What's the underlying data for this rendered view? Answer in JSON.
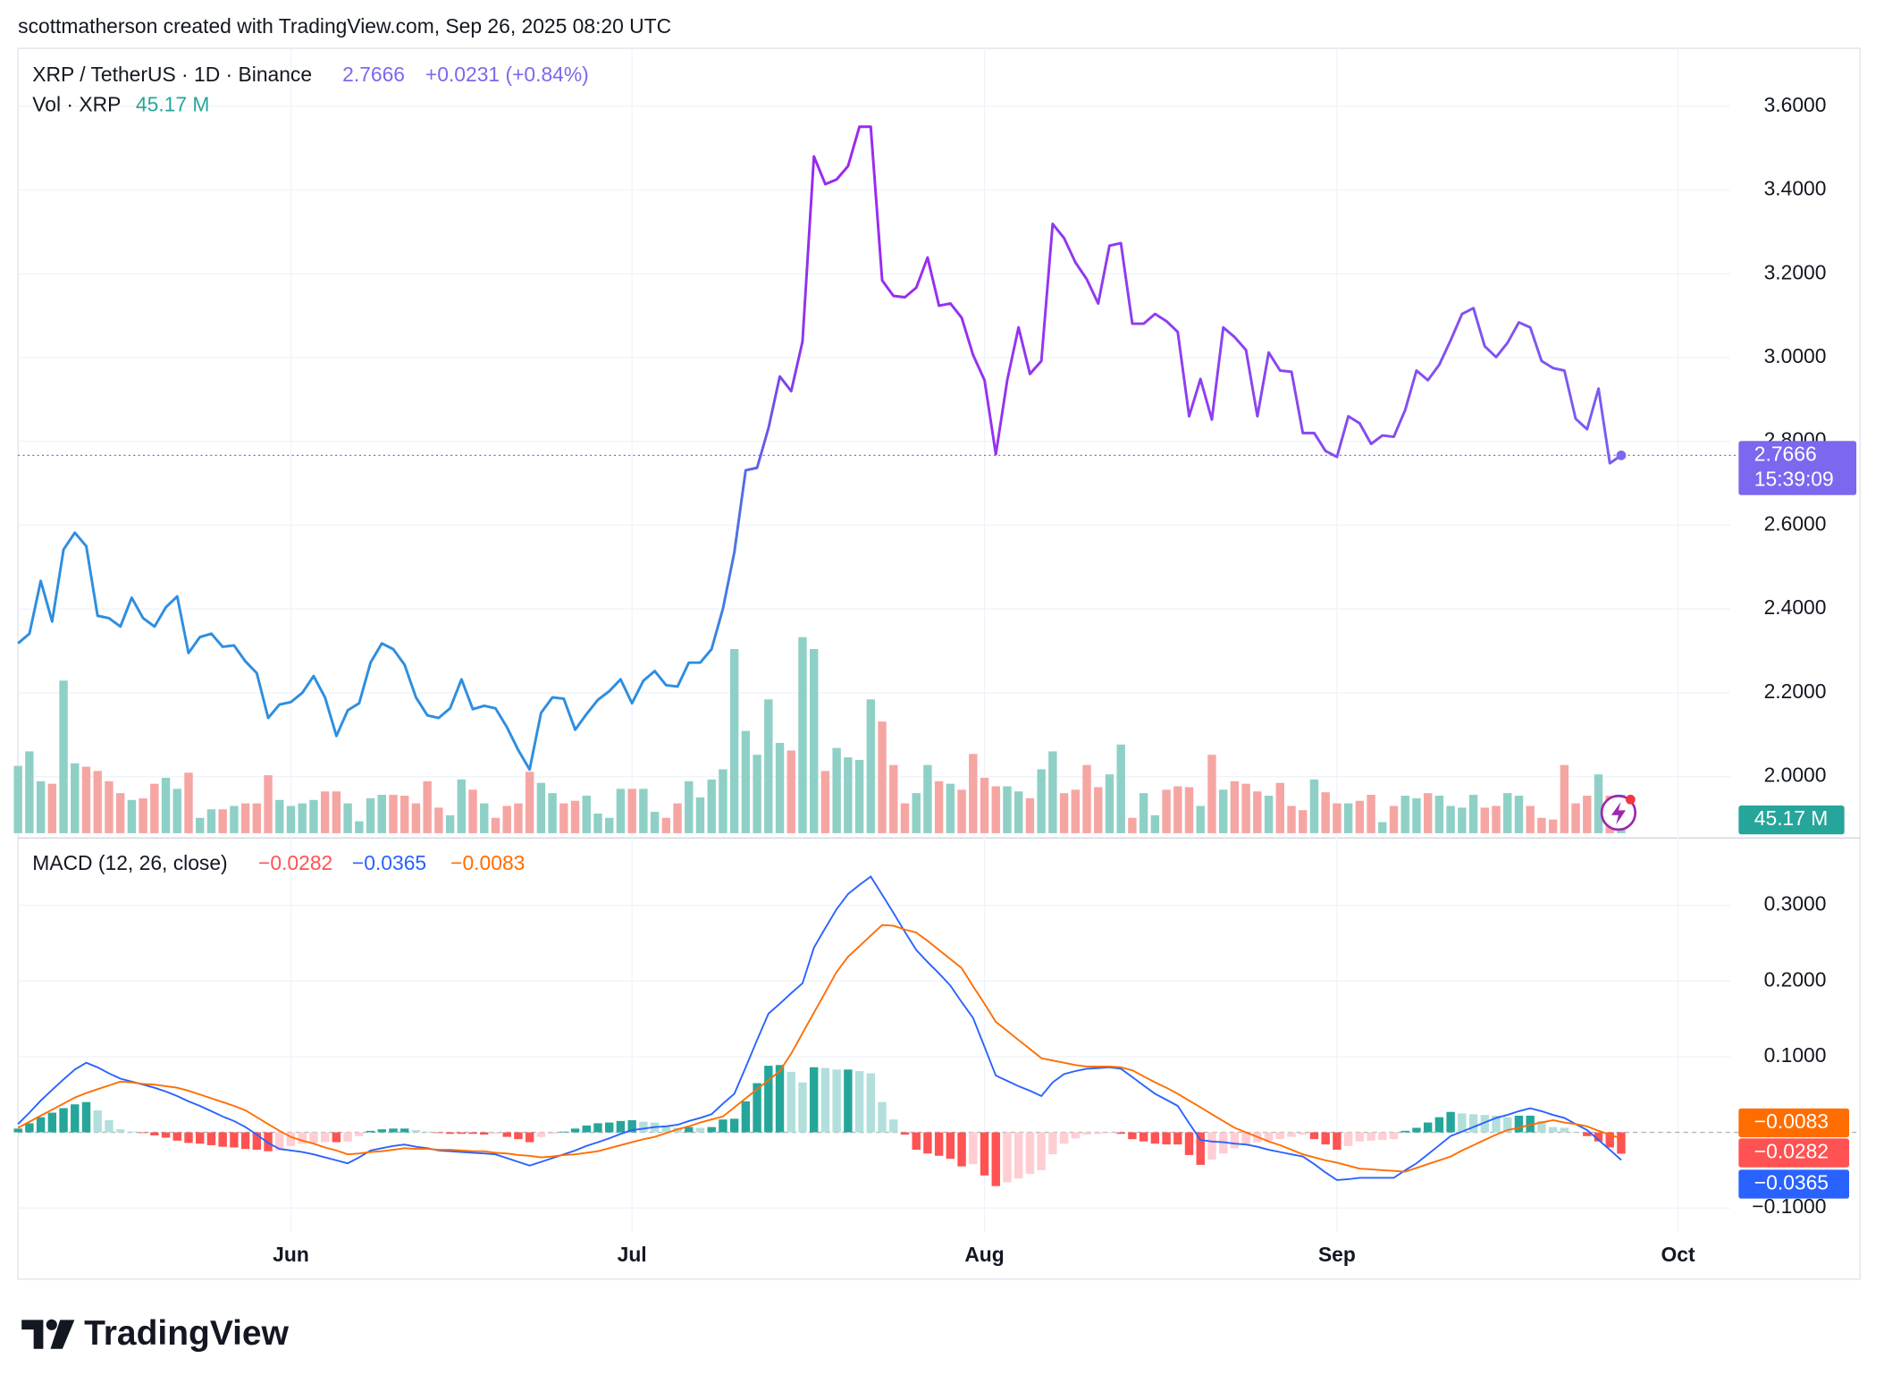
{
  "header": {
    "watermark": "scottmatherson created with TradingView.com, Sep 26, 2025 08:20 UTC",
    "logo": "TradingView"
  },
  "chart_data": [
    {
      "type": "line",
      "title": "XRP / TetherUS · 1D · Binance",
      "change_label": "+0.0231 (+0.84%)",
      "countdown": "15:39:09",
      "colors": [
        "#2e8ee0",
        "#2e8ee0",
        "#9c27f0",
        "#7b5cf0"
      ],
      "label_color": "#7b68ee",
      "ylim": [
        1.865,
        3.738
      ],
      "yticks": [
        {
          "value": 2.0,
          "label": "2.0000"
        },
        {
          "value": 2.2,
          "label": "2.2000"
        },
        {
          "value": 2.4,
          "label": "2.4000"
        },
        {
          "value": 2.6,
          "label": "2.6000"
        },
        {
          "value": 2.8,
          "label": "2.8000"
        },
        {
          "value": 3.0,
          "label": "3.0000"
        },
        {
          "value": 3.2,
          "label": "3.2000"
        },
        {
          "value": 3.4,
          "label": "3.4000"
        },
        {
          "value": 3.6,
          "label": "3.6000"
        }
      ],
      "grid": true,
      "values": [
        2.318,
        2.341,
        2.467,
        2.37,
        2.542,
        2.582,
        2.55,
        2.384,
        2.378,
        2.358,
        2.427,
        2.378,
        2.358,
        2.404,
        2.43,
        2.295,
        2.333,
        2.341,
        2.31,
        2.313,
        2.275,
        2.247,
        2.14,
        2.172,
        2.178,
        2.2,
        2.24,
        2.189,
        2.097,
        2.158,
        2.175,
        2.272,
        2.318,
        2.304,
        2.267,
        2.189,
        2.146,
        2.14,
        2.163,
        2.232,
        2.161,
        2.169,
        2.163,
        2.118,
        2.063,
        2.017,
        2.152,
        2.189,
        2.186,
        2.112,
        2.149,
        2.183,
        2.204,
        2.232,
        2.175,
        2.229,
        2.252,
        2.218,
        2.215,
        2.272,
        2.272,
        2.304,
        2.401,
        2.536,
        2.731,
        2.737,
        2.832,
        2.955,
        2.92,
        3.038,
        3.48,
        3.414,
        3.425,
        3.457,
        3.551,
        3.551,
        3.184,
        3.147,
        3.144,
        3.167,
        3.239,
        3.124,
        3.129,
        3.095,
        3.006,
        2.946,
        2.769,
        2.946,
        3.072,
        2.961,
        2.992,
        3.319,
        3.285,
        3.227,
        3.187,
        3.129,
        3.267,
        3.273,
        3.081,
        3.081,
        3.104,
        3.087,
        3.061,
        2.86,
        2.949,
        2.852,
        3.072,
        3.049,
        3.018,
        2.86,
        3.012,
        2.969,
        2.966,
        2.82,
        2.82,
        2.777,
        2.763,
        2.86,
        2.843,
        2.794,
        2.814,
        2.811,
        2.875,
        2.969,
        2.946,
        2.983,
        3.041,
        3.104,
        3.118,
        3.027,
        3.001,
        3.035,
        3.084,
        3.072,
        2.992,
        2.975,
        2.969,
        2.854,
        2.829,
        2.926,
        2.748,
        2.7666
      ]
    },
    {
      "type": "volume",
      "title": "Vol · XRP",
      "up_color": "#8fd0c6",
      "down_color": "#f5a6a3",
      "label_color": "#26a69a",
      "values": [
        79,
        96,
        61,
        58,
        179,
        82,
        78,
        73,
        61,
        47,
        39,
        41,
        58,
        65,
        52,
        71,
        18,
        28,
        28,
        32,
        35,
        35,
        68,
        39,
        32,
        35,
        39,
        49,
        49,
        35,
        14,
        41,
        45,
        45,
        44,
        35,
        61,
        30,
        21,
        63,
        51,
        35,
        18,
        32,
        35,
        72,
        59,
        47,
        35,
        38,
        44,
        23,
        18,
        52,
        52,
        52,
        25,
        18,
        35,
        61,
        42,
        63,
        75,
        216,
        120,
        92,
        157,
        106,
        97,
        230,
        216,
        73,
        100,
        89,
        86,
        157,
        131,
        80,
        35,
        47,
        80,
        61,
        58,
        51,
        93,
        65,
        55,
        55,
        49,
        41,
        75,
        96,
        47,
        51,
        80,
        54,
        69,
        104,
        18,
        47,
        21,
        51,
        55,
        54,
        32,
        92,
        51,
        61,
        58,
        49,
        44,
        59,
        32,
        27,
        63,
        48,
        35,
        35,
        38,
        45,
        13,
        32,
        44,
        41,
        47,
        44,
        32,
        30,
        45,
        30,
        32,
        47,
        44,
        32,
        18,
        16,
        80,
        35,
        44,
        69,
        44,
        45.17
      ],
      "value_labels": {
        "141": "45.17 M"
      }
    },
    {
      "type": "macd",
      "title": "MACD (12, 26, close)",
      "xlim": [
        0,
        162
      ],
      "xticks": [
        {
          "value": 24,
          "label": "Jun"
        },
        {
          "value": 54,
          "label": "Jul"
        },
        {
          "value": 85,
          "label": "Aug"
        },
        {
          "value": 116,
          "label": "Sep"
        },
        {
          "value": 146,
          "label": "Oct"
        }
      ],
      "ylim": [
        -0.132,
        0.389
      ],
      "yticks": [
        {
          "value": 0.3,
          "label": "0.3000"
        },
        {
          "value": 0.2,
          "label": "0.2000"
        },
        {
          "value": 0.1,
          "label": "0.1000"
        },
        {
          "value": -0.1,
          "label": "−0.1000"
        }
      ],
      "series": [
        {
          "kind": "histogram",
          "color": "#ff5252",
          "colors": [
            "#26a69a",
            "#b2dfdb",
            "#ffcdd2",
            "#ff5252"
          ],
          "value_labels": {
            "141": "−0.0282"
          },
          "values": [
            0.005,
            0.012,
            0.02,
            0.026,
            0.032,
            0.037,
            0.04,
            0.029,
            0.016,
            0.004,
            0.001,
            -0.001,
            -0.004,
            -0.007,
            -0.011,
            -0.014,
            -0.015,
            -0.017,
            -0.019,
            -0.02,
            -0.022,
            -0.023,
            -0.025,
            -0.024,
            -0.018,
            -0.015,
            -0.014,
            -0.013,
            -0.013,
            -0.012,
            -0.005,
            0.002,
            0.004,
            0.005,
            0.005,
            0.003,
            0.001,
            -0.001,
            -0.002,
            -0.002,
            -0.002,
            -0.003,
            -0.002,
            -0.006,
            -0.009,
            -0.013,
            -0.006,
            -0.002,
            0.001,
            0.005,
            0.009,
            0.012,
            0.013,
            0.015,
            0.016,
            0.014,
            0.013,
            0.009,
            0.006,
            0.007,
            0.006,
            0.007,
            0.017,
            0.018,
            0.041,
            0.065,
            0.088,
            0.089,
            0.08,
            0.066,
            0.086,
            0.085,
            0.083,
            0.083,
            0.081,
            0.078,
            0.04,
            0.017,
            -0.003,
            -0.023,
            -0.028,
            -0.031,
            -0.035,
            -0.045,
            -0.042,
            -0.057,
            -0.071,
            -0.066,
            -0.061,
            -0.055,
            -0.05,
            -0.029,
            -0.015,
            -0.008,
            -0.003,
            -0.002,
            -0.001,
            -0.002,
            -0.009,
            -0.012,
            -0.015,
            -0.016,
            -0.016,
            -0.03,
            -0.043,
            -0.036,
            -0.028,
            -0.021,
            -0.016,
            -0.013,
            -0.011,
            -0.009,
            -0.006,
            -0.003,
            -0.009,
            -0.016,
            -0.023,
            -0.018,
            -0.012,
            -0.011,
            -0.01,
            -0.009,
            0.002,
            0.006,
            0.013,
            0.02,
            0.027,
            0.025,
            0.024,
            0.023,
            0.022,
            0.02,
            0.022,
            0.022,
            0.015,
            0.007,
            0.006,
            0.0,
            -0.005,
            -0.012,
            -0.02,
            -0.0282
          ]
        },
        {
          "kind": "line",
          "color": "#2962ff",
          "value_labels": {
            "141": "−0.0365"
          },
          "values": [
            0.011,
            0.026,
            0.042,
            0.056,
            0.07,
            0.083,
            0.092,
            0.086,
            0.078,
            0.071,
            0.067,
            0.063,
            0.059,
            0.054,
            0.048,
            0.041,
            0.035,
            0.028,
            0.021,
            0.015,
            0.007,
            -0.003,
            -0.014,
            -0.022,
            -0.024,
            -0.026,
            -0.029,
            -0.033,
            -0.037,
            -0.041,
            -0.033,
            -0.024,
            -0.021,
            -0.018,
            -0.016,
            -0.019,
            -0.021,
            -0.024,
            -0.025,
            -0.026,
            -0.027,
            -0.028,
            -0.029,
            -0.034,
            -0.039,
            -0.044,
            -0.039,
            -0.034,
            -0.029,
            -0.024,
            -0.018,
            -0.013,
            -0.008,
            -0.002,
            0.003,
            0.005,
            0.007,
            0.008,
            0.01,
            0.015,
            0.019,
            0.024,
            0.038,
            0.051,
            0.086,
            0.122,
            0.157,
            0.17,
            0.184,
            0.197,
            0.244,
            0.27,
            0.295,
            0.315,
            0.327,
            0.338,
            0.314,
            0.29,
            0.265,
            0.241,
            0.225,
            0.21,
            0.194,
            0.172,
            0.151,
            0.113,
            0.075,
            0.068,
            0.061,
            0.055,
            0.048,
            0.066,
            0.077,
            0.081,
            0.084,
            0.085,
            0.086,
            0.084,
            0.073,
            0.062,
            0.051,
            0.043,
            0.035,
            0.012,
            -0.01,
            -0.012,
            -0.013,
            -0.015,
            -0.016,
            -0.019,
            -0.023,
            -0.026,
            -0.029,
            -0.032,
            -0.042,
            -0.053,
            -0.063,
            -0.062,
            -0.06,
            -0.06,
            -0.06,
            -0.06,
            -0.05,
            -0.041,
            -0.029,
            -0.017,
            -0.005,
            0.001,
            0.007,
            0.013,
            0.019,
            0.023,
            0.028,
            0.032,
            0.028,
            0.023,
            0.019,
            0.011,
            0.003,
            -0.01,
            -0.023,
            -0.0365
          ]
        },
        {
          "kind": "line",
          "color": "#ff6d00",
          "value_labels": {
            "141": "−0.0083"
          },
          "values": [
            0.006,
            0.014,
            0.022,
            0.03,
            0.038,
            0.046,
            0.052,
            0.057,
            0.062,
            0.067,
            0.066,
            0.064,
            0.063,
            0.061,
            0.059,
            0.055,
            0.05,
            0.045,
            0.04,
            0.035,
            0.029,
            0.02,
            0.011,
            0.002,
            -0.006,
            -0.011,
            -0.015,
            -0.02,
            -0.024,
            -0.029,
            -0.028,
            -0.026,
            -0.025,
            -0.023,
            -0.021,
            -0.022,
            -0.022,
            -0.023,
            -0.023,
            -0.024,
            -0.025,
            -0.025,
            -0.027,
            -0.028,
            -0.03,
            -0.031,
            -0.033,
            -0.032,
            -0.03,
            -0.029,
            -0.027,
            -0.025,
            -0.021,
            -0.017,
            -0.013,
            -0.009,
            -0.006,
            -0.001,
            0.004,
            0.008,
            0.013,
            0.017,
            0.021,
            0.033,
            0.045,
            0.057,
            0.069,
            0.081,
            0.104,
            0.131,
            0.158,
            0.185,
            0.212,
            0.232,
            0.246,
            0.26,
            0.274,
            0.273,
            0.268,
            0.264,
            0.253,
            0.241,
            0.229,
            0.217,
            0.193,
            0.17,
            0.146,
            0.134,
            0.122,
            0.11,
            0.098,
            0.095,
            0.092,
            0.089,
            0.087,
            0.087,
            0.087,
            0.086,
            0.082,
            0.074,
            0.066,
            0.059,
            0.051,
            0.042,
            0.033,
            0.024,
            0.015,
            0.006,
            0.0,
            -0.006,
            -0.012,
            -0.017,
            -0.023,
            -0.029,
            -0.033,
            -0.037,
            -0.04,
            -0.044,
            -0.048,
            -0.049,
            -0.05,
            -0.051,
            -0.052,
            -0.047,
            -0.042,
            -0.037,
            -0.032,
            -0.024,
            -0.017,
            -0.01,
            -0.003,
            0.003,
            0.006,
            0.01,
            0.013,
            0.016,
            0.013,
            0.011,
            0.008,
            0.002,
            -0.003,
            -0.0083
          ]
        }
      ]
    }
  ]
}
